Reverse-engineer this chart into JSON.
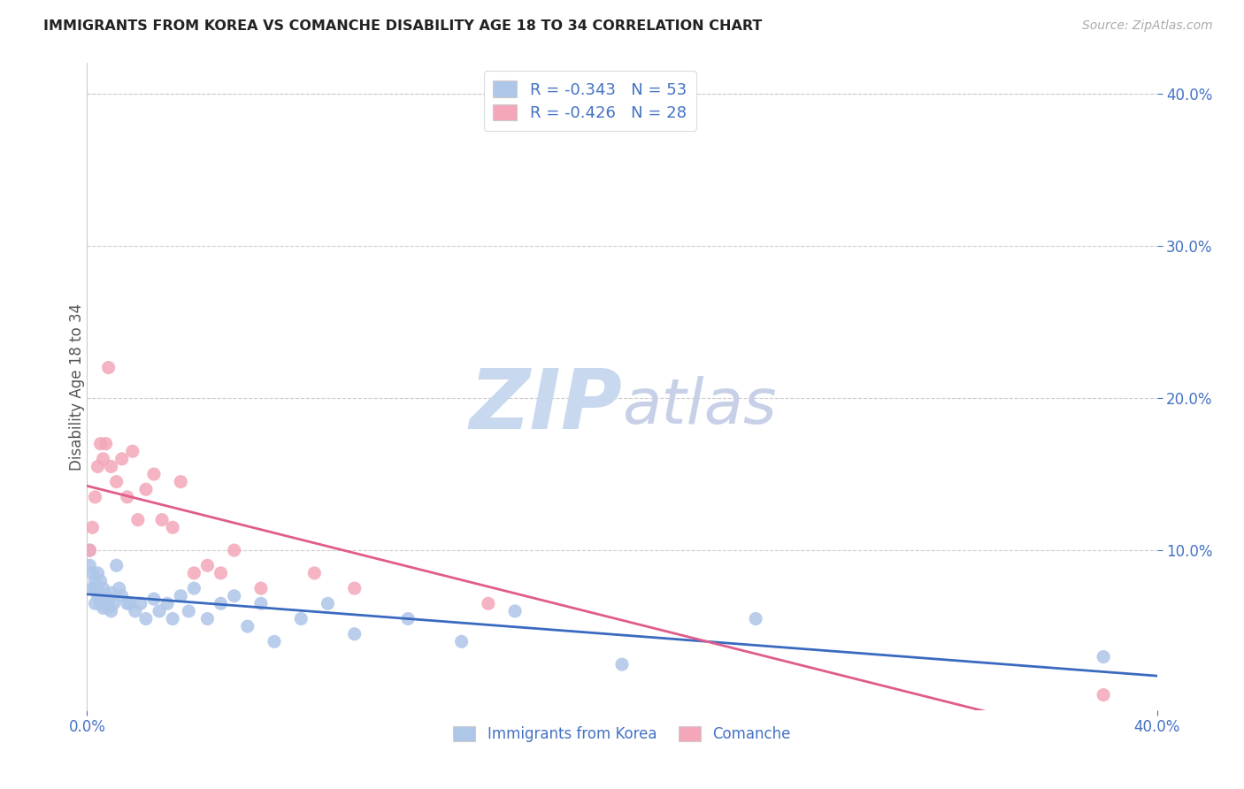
{
  "title": "IMMIGRANTS FROM KOREA VS COMANCHE DISABILITY AGE 18 TO 34 CORRELATION CHART",
  "source": "Source: ZipAtlas.com",
  "ylabel": "Disability Age 18 to 34",
  "legend_korea": "Immigrants from Korea",
  "legend_comanche": "Comanche",
  "r_korea": -0.343,
  "n_korea": 53,
  "r_comanche": -0.426,
  "n_comanche": 28,
  "color_korea": "#aec6e8",
  "color_comanche": "#f4a7b9",
  "color_line_korea": "#3a6abf",
  "color_line_comanche": "#e05c8a",
  "title_color": "#222222",
  "source_color": "#aaaaaa",
  "axis_label_color": "#4472c4",
  "watermark_zip_color": "#c8d8ee",
  "watermark_atlas_color": "#c8d0e8",
  "background_color": "#ffffff",
  "korea_x": [
    0.001,
    0.001,
    0.002,
    0.002,
    0.003,
    0.003,
    0.003,
    0.004,
    0.004,
    0.004,
    0.005,
    0.005,
    0.005,
    0.006,
    0.006,
    0.006,
    0.007,
    0.007,
    0.008,
    0.008,
    0.009,
    0.009,
    0.01,
    0.011,
    0.012,
    0.013,
    0.015,
    0.016,
    0.018,
    0.02,
    0.022,
    0.025,
    0.027,
    0.03,
    0.032,
    0.035,
    0.038,
    0.04,
    0.045,
    0.05,
    0.055,
    0.06,
    0.065,
    0.07,
    0.08,
    0.09,
    0.1,
    0.12,
    0.14,
    0.16,
    0.2,
    0.25,
    0.38
  ],
  "korea_y": [
    0.09,
    0.1,
    0.085,
    0.075,
    0.08,
    0.075,
    0.065,
    0.085,
    0.075,
    0.07,
    0.08,
    0.07,
    0.065,
    0.075,
    0.068,
    0.062,
    0.07,
    0.065,
    0.068,
    0.062,
    0.072,
    0.06,
    0.065,
    0.09,
    0.075,
    0.07,
    0.065,
    0.065,
    0.06,
    0.065,
    0.055,
    0.068,
    0.06,
    0.065,
    0.055,
    0.07,
    0.06,
    0.075,
    0.055,
    0.065,
    0.07,
    0.05,
    0.065,
    0.04,
    0.055,
    0.065,
    0.045,
    0.055,
    0.04,
    0.06,
    0.025,
    0.055,
    0.03
  ],
  "comanche_x": [
    0.001,
    0.002,
    0.003,
    0.004,
    0.005,
    0.006,
    0.007,
    0.008,
    0.009,
    0.011,
    0.013,
    0.015,
    0.017,
    0.019,
    0.022,
    0.025,
    0.028,
    0.032,
    0.035,
    0.04,
    0.045,
    0.05,
    0.055,
    0.065,
    0.085,
    0.1,
    0.15,
    0.38
  ],
  "comanche_y": [
    0.1,
    0.115,
    0.135,
    0.155,
    0.17,
    0.16,
    0.17,
    0.22,
    0.155,
    0.145,
    0.16,
    0.135,
    0.165,
    0.12,
    0.14,
    0.15,
    0.12,
    0.115,
    0.145,
    0.085,
    0.09,
    0.085,
    0.1,
    0.075,
    0.085,
    0.075,
    0.065,
    0.005
  ],
  "xlim": [
    0.0,
    0.4
  ],
  "ylim": [
    -0.005,
    0.42
  ],
  "xticks": [
    0.0,
    0.4
  ],
  "yticks_right": [
    0.1,
    0.2,
    0.3,
    0.4
  ],
  "grid_lines": [
    0.1,
    0.2,
    0.3,
    0.4
  ]
}
